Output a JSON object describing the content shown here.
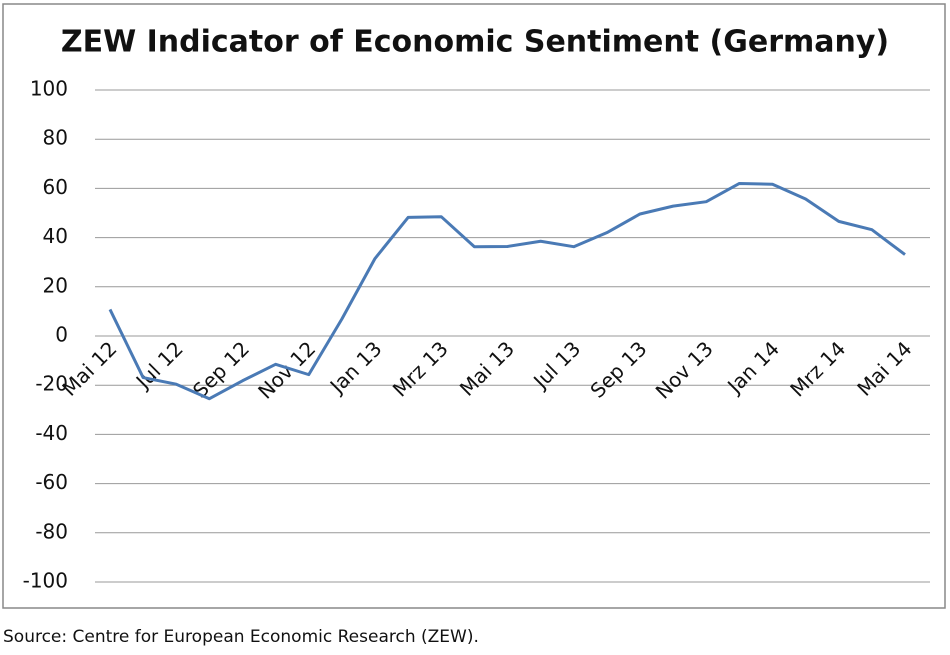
{
  "chart_data": {
    "type": "line",
    "title": "ZEW Indicator of Economic Sentiment (Germany)",
    "source": "Source: Centre for European Economic Research (ZEW).",
    "categories": [
      "Mai 12",
      null,
      "Jul 12",
      null,
      "Sep 12",
      null,
      "Nov 12",
      null,
      "Jan 13",
      null,
      "Mrz 13",
      null,
      "Mai 13",
      null,
      "Jul 13",
      null,
      "Sep 13",
      null,
      "Nov 13",
      null,
      "Jan 14",
      null,
      "Mrz 14",
      null,
      "Mai 14"
    ],
    "series": [
      {
        "name": "ZEW",
        "color": "#4a7ab5",
        "values": [
          10.8,
          -16.9,
          -19.6,
          -25.5,
          -18.2,
          -11.5,
          -15.7,
          6.9,
          31.5,
          48.2,
          48.5,
          36.3,
          36.4,
          38.5,
          36.3,
          42.0,
          49.6,
          52.8,
          54.6,
          62.0,
          61.7,
          55.7,
          46.6,
          43.2,
          33.1
        ]
      }
    ],
    "ylim": [
      -100,
      100
    ],
    "yticks": [
      -100,
      -80,
      -60,
      -40,
      -20,
      0,
      20,
      40,
      60,
      80,
      100
    ],
    "grid": true
  }
}
